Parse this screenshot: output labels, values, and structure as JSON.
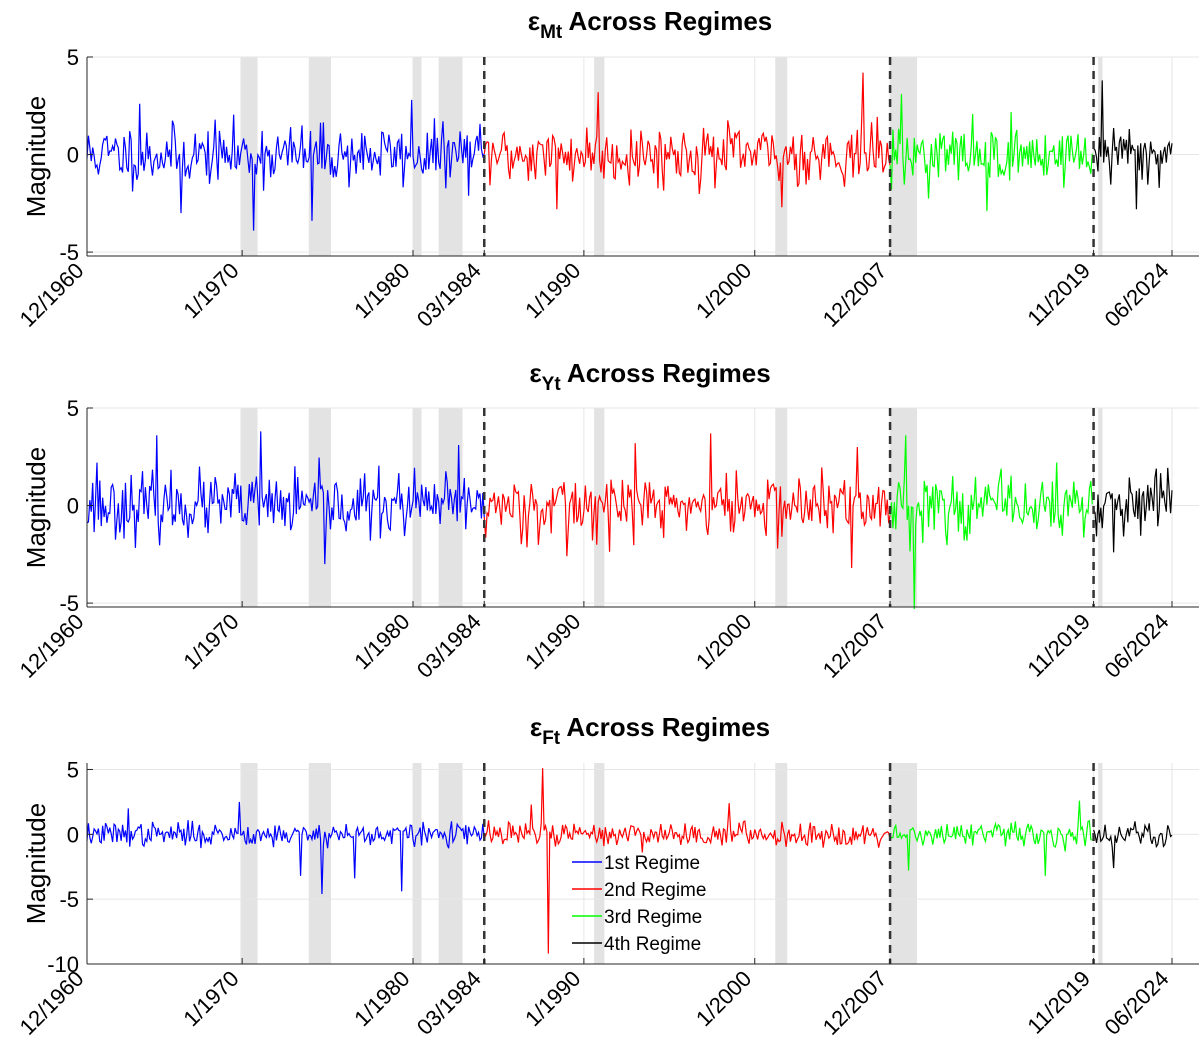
{
  "chart_data": [
    {
      "type": "line",
      "title_symbol": "ε",
      "title_subscript": "Mt",
      "title_rest": " Across Regimes",
      "ylabel": "Magnitude",
      "ylim": [
        -5.2,
        5
      ],
      "yticks": [
        -5,
        0,
        5
      ],
      "amp": 0.75,
      "seed": 11,
      "spikes": [
        {
          "x": 1964.0,
          "y": 2.6
        },
        {
          "x": 1966.4,
          "y": -3.0
        },
        {
          "x": 1970.7,
          "y": -3.9
        },
        {
          "x": 1974.1,
          "y": -3.4
        },
        {
          "x": 1979.9,
          "y": 2.8
        },
        {
          "x": 1988.4,
          "y": -2.8
        },
        {
          "x": 1990.8,
          "y": 3.2
        },
        {
          "x": 2001.6,
          "y": -2.7
        },
        {
          "x": 2006.3,
          "y": 4.2
        },
        {
          "x": 2008.6,
          "y": 3.1
        },
        {
          "x": 2013.6,
          "y": -2.9
        },
        {
          "x": 2020.3,
          "y": 3.8
        },
        {
          "x": 2022.3,
          "y": -2.8
        }
      ]
    },
    {
      "type": "line",
      "title_symbol": "ε",
      "title_subscript": "Yt",
      "title_rest": " Across Regimes",
      "ylabel": "Magnitude",
      "ylim": [
        -5.2,
        5
      ],
      "yticks": [
        -5,
        0,
        5
      ],
      "amp": 0.8,
      "seed": 23,
      "spikes": [
        {
          "x": 1961.5,
          "y": 2.2
        },
        {
          "x": 1965.0,
          "y": 3.6
        },
        {
          "x": 1971.1,
          "y": 3.8
        },
        {
          "x": 1974.8,
          "y": -3.0
        },
        {
          "x": 1982.7,
          "y": 3.1
        },
        {
          "x": 1989.0,
          "y": -2.6
        },
        {
          "x": 1993.0,
          "y": 3.2
        },
        {
          "x": 1997.4,
          "y": 3.7
        },
        {
          "x": 2006.0,
          "y": 3.0
        },
        {
          "x": 2005.7,
          "y": -3.2
        },
        {
          "x": 2009.3,
          "y": -5.3
        },
        {
          "x": 2008.8,
          "y": 3.6
        },
        {
          "x": 2021.0,
          "y": -2.4
        }
      ]
    },
    {
      "type": "line",
      "title_symbol": "ε",
      "title_subscript": "Ft",
      "title_rest": " Across Regimes",
      "ylabel": "Magnitude",
      "ylim": [
        -10,
        5.5
      ],
      "yticks": [
        -10,
        -5,
        0,
        5
      ],
      "amp": 0.45,
      "seed": 37,
      "spikes": [
        {
          "x": 1963.3,
          "y": 2.0
        },
        {
          "x": 1969.8,
          "y": 2.5
        },
        {
          "x": 1973.4,
          "y": -3.2
        },
        {
          "x": 1974.7,
          "y": -4.6
        },
        {
          "x": 1976.6,
          "y": -3.4
        },
        {
          "x": 1979.3,
          "y": -4.4
        },
        {
          "x": 1986.9,
          "y": 2.3
        },
        {
          "x": 1987.6,
          "y": 5.1
        },
        {
          "x": 1987.9,
          "y": -9.2
        },
        {
          "x": 1998.5,
          "y": 2.4
        },
        {
          "x": 2009.0,
          "y": -2.8
        },
        {
          "x": 2017.0,
          "y": -3.2
        },
        {
          "x": 2019.0,
          "y": 2.6
        },
        {
          "x": 2021.0,
          "y": -2.6
        }
      ]
    }
  ],
  "x_axis": {
    "start": 1960.92,
    "end": 2026.0,
    "ticks": [
      {
        "label": "12/1960",
        "x": 1960.92
      },
      {
        "label": "1/1970",
        "x": 1970.0
      },
      {
        "label": "1/1980",
        "x": 1980.0
      },
      {
        "label": "03/1984",
        "x": 1984.17
      },
      {
        "label": "1/1990",
        "x": 1990.0
      },
      {
        "label": "1/2000",
        "x": 2000.0
      },
      {
        "label": "12/2007",
        "x": 2007.92
      },
      {
        "label": "11/2019",
        "x": 2019.83
      },
      {
        "label": "06/2024",
        "x": 2024.42
      }
    ]
  },
  "recessions": [
    [
      1969.9,
      1970.9
    ],
    [
      1973.9,
      1975.2
    ],
    [
      1980.0,
      1980.5
    ],
    [
      1981.5,
      1982.9
    ],
    [
      1990.6,
      1991.2
    ],
    [
      2001.2,
      2001.9
    ],
    [
      2007.92,
      2009.5
    ],
    [
      2020.1,
      2020.35
    ]
  ],
  "regime_breaks": [
    1984.17,
    2007.92,
    2019.83
  ],
  "regimes": [
    {
      "name": "1st Regime",
      "color": "#0000ff",
      "from": 1960.92,
      "to": 1984.17
    },
    {
      "name": "2nd Regime",
      "color": "#ff0000",
      "from": 1984.17,
      "to": 2007.92
    },
    {
      "name": "3rd Regime",
      "color": "#00ff00",
      "from": 2007.92,
      "to": 2019.83
    },
    {
      "name": "4th Regime",
      "color": "#000000",
      "from": 2019.83,
      "to": 2024.42
    }
  ],
  "legend_panel": 2
}
